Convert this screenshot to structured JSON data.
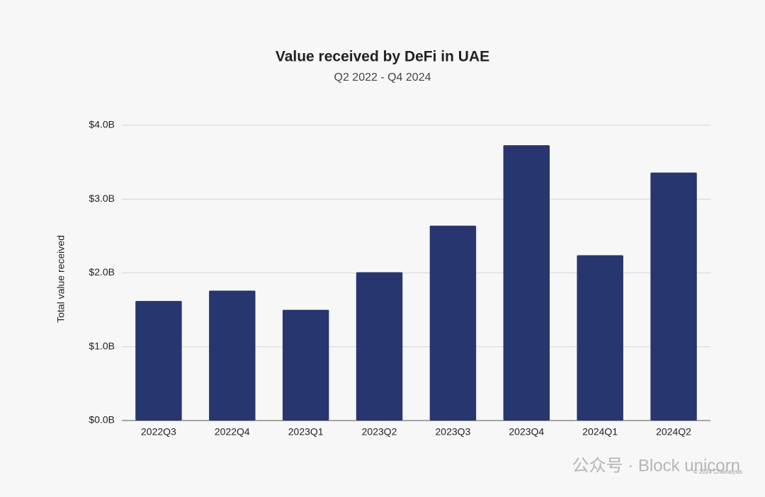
{
  "chart_data": {
    "type": "bar",
    "title": "Value received by DeFi in UAE",
    "subtitle": "Q2 2022 - Q4 2024",
    "y_label": "Total value received",
    "categories": [
      "2022Q3",
      "2022Q4",
      "2023Q1",
      "2023Q2",
      "2023Q3",
      "2023Q4",
      "2024Q1",
      "2024Q2"
    ],
    "values": [
      1.62,
      1.76,
      1.5,
      2.01,
      2.64,
      3.73,
      2.24,
      3.36
    ],
    "color": "#27366e",
    "ylim": [
      0,
      4
    ],
    "yticks": [
      {
        "value": 0,
        "label": "$0.0B"
      },
      {
        "value": 1,
        "label": "$1.0B"
      },
      {
        "value": 2,
        "label": "$2.0B"
      },
      {
        "value": 3,
        "label": "$3.0B"
      },
      {
        "value": 4,
        "label": "$4.0B"
      }
    ],
    "grid": true
  },
  "watermark": "公众号 · Block unicorn",
  "credit": "© 2024 Chainalysis"
}
